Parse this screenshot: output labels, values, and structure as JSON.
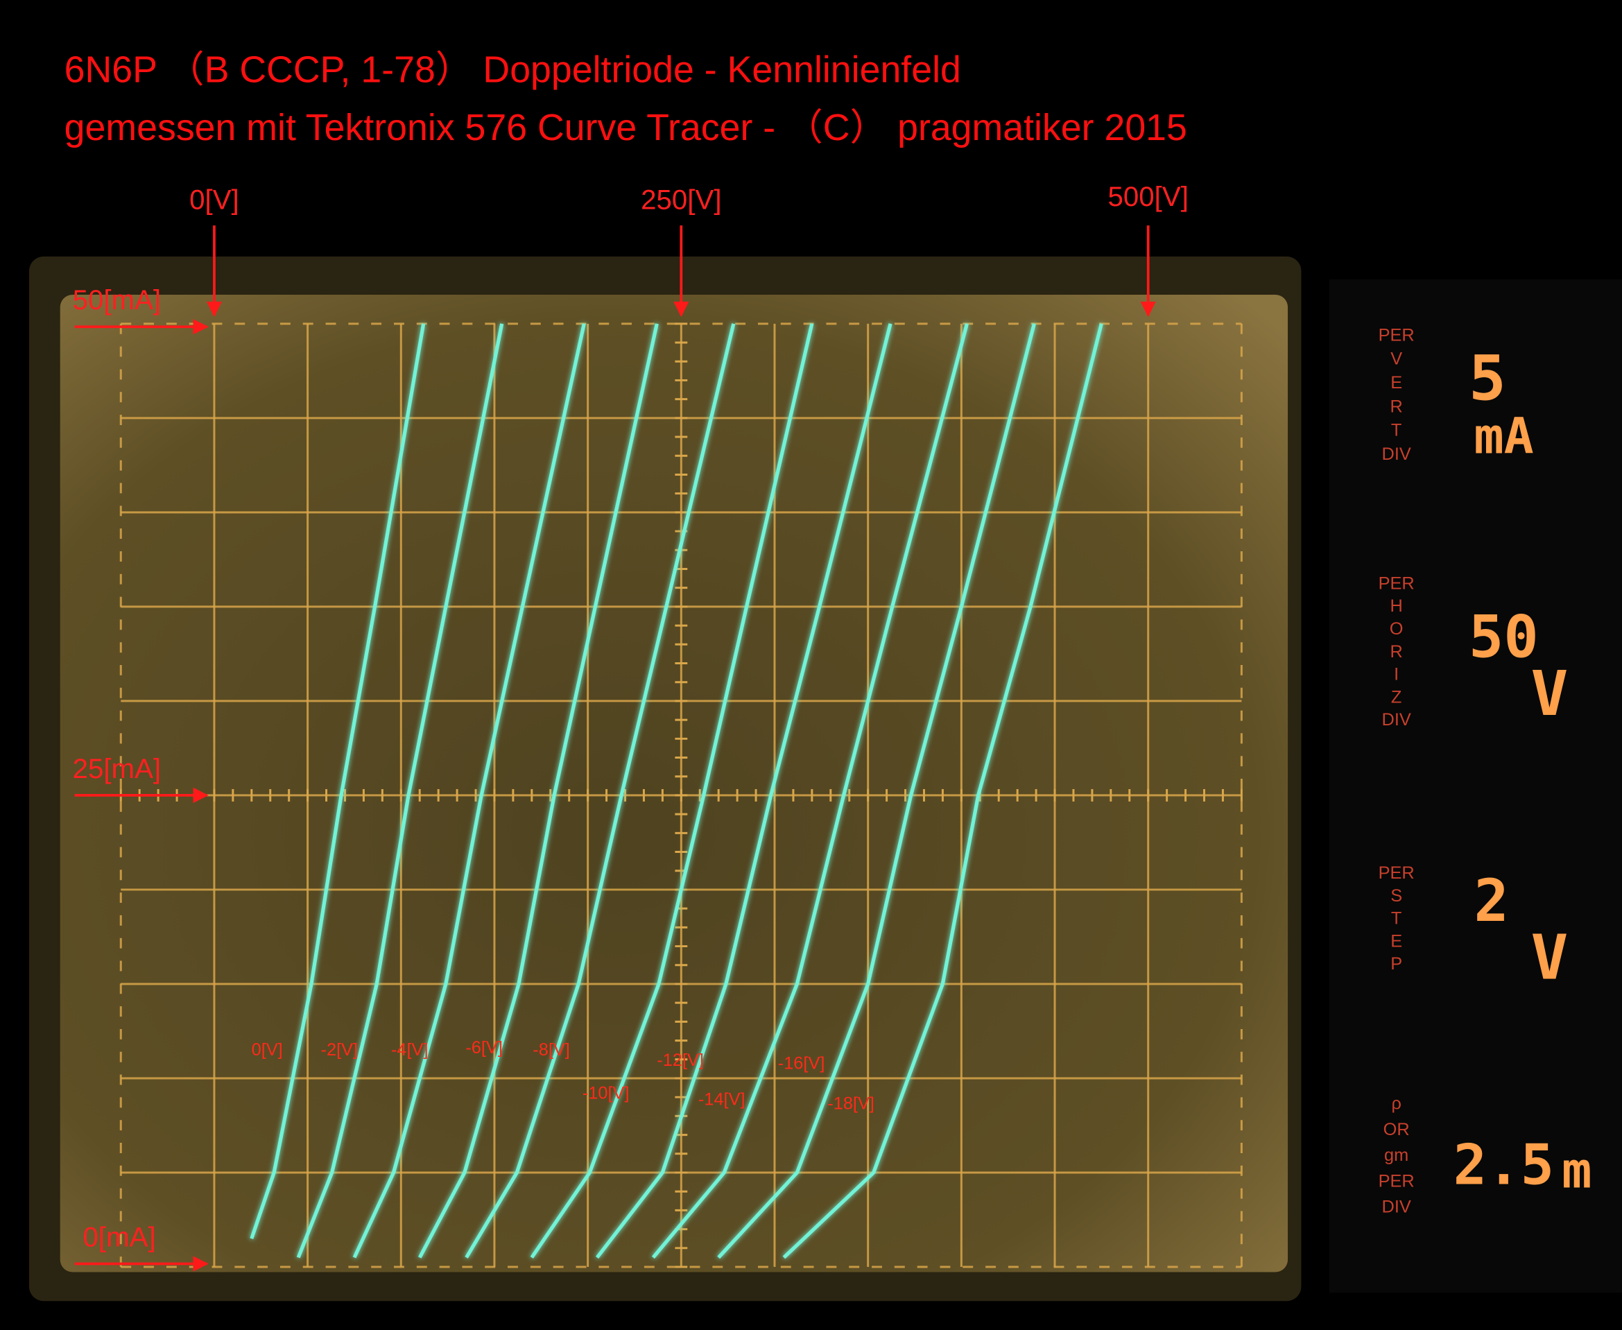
{
  "chart_data": {
    "type": "line",
    "title": "6N6P （B CCCP, 1-78） Doppeltriode - Kennlinienfeld",
    "subtitle": "gemessen mit Tektronix 576 Curve Tracer - （C） pragmatiker 2015",
    "xlim": [
      -50,
      550
    ],
    "ylim": [
      0,
      50
    ],
    "xticks": [
      {
        "value": 0,
        "label": "0[V]"
      },
      {
        "value": 250,
        "label": "250[V]"
      },
      {
        "value": 500,
        "label": "500[V]"
      }
    ],
    "yticks": [
      {
        "value": 50,
        "label": "50[mA]"
      },
      {
        "value": 25,
        "label": "25[mA]"
      },
      {
        "value": 0,
        "label": "0[mA]"
      }
    ],
    "color": "#72f2d6",
    "series": [
      {
        "name": "0[V]",
        "x": [
          20,
          32,
          52,
          68,
          86,
          112
        ],
        "values": [
          1.5,
          5,
          15,
          25,
          35,
          50
        ]
      },
      {
        "name": "-2[V]",
        "x": [
          45,
          63,
          87,
          104,
          124,
          154
        ],
        "values": [
          0.5,
          5,
          15,
          25,
          35,
          50
        ]
      },
      {
        "name": "-4[V]",
        "x": [
          75,
          96,
          124,
          143,
          165,
          198
        ],
        "values": [
          0.5,
          5,
          15,
          25,
          35,
          50
        ]
      },
      {
        "name": "-6[V]",
        "x": [
          110,
          134,
          163,
          182,
          204,
          237
        ],
        "values": [
          0.5,
          5,
          15,
          25,
          35,
          50
        ]
      },
      {
        "name": "-8[V]",
        "x": [
          135,
          162,
          195,
          218,
          242,
          278
        ],
        "values": [
          0.5,
          5,
          15,
          25,
          35,
          50
        ]
      },
      {
        "name": "-10[V]",
        "x": [
          170,
          201,
          238,
          262,
          285,
          320
        ],
        "values": [
          0.5,
          5,
          15,
          25,
          35,
          50
        ]
      },
      {
        "name": "-12[V]",
        "x": [
          205,
          240,
          274,
          298,
          324,
          362
        ],
        "values": [
          0.5,
          5,
          15,
          25,
          35,
          50
        ]
      },
      {
        "name": "-14[V]",
        "x": [
          235,
          273,
          312,
          337,
          363,
          403
        ],
        "values": [
          0.5,
          5,
          15,
          25,
          35,
          50
        ]
      },
      {
        "name": "-16[V]",
        "x": [
          270,
          312,
          350,
          373,
          400,
          439
        ],
        "values": [
          0.5,
          5,
          15,
          25,
          35,
          50
        ]
      },
      {
        "name": "-18[V]",
        "x": [
          305,
          353,
          390,
          409,
          437,
          475
        ],
        "values": [
          0.5,
          5,
          15,
          25,
          35,
          50
        ]
      }
    ]
  },
  "readouts": [
    {
      "caption": [
        "PER",
        "V",
        "E",
        "R",
        "T",
        "DIV"
      ],
      "value": "5",
      "unit": "mA"
    },
    {
      "caption": [
        "PER",
        "H",
        "O",
        "R",
        "I",
        "Z",
        "DIV"
      ],
      "value": "50",
      "unit": "V"
    },
    {
      "caption": [
        "PER",
        "S",
        "T",
        "E",
        "P"
      ],
      "value": "2",
      "unit": "V"
    },
    {
      "caption": [
        "ρ",
        "OR",
        "gm",
        "PER",
        "DIV"
      ],
      "value": "2.5",
      "unit": "m"
    }
  ]
}
